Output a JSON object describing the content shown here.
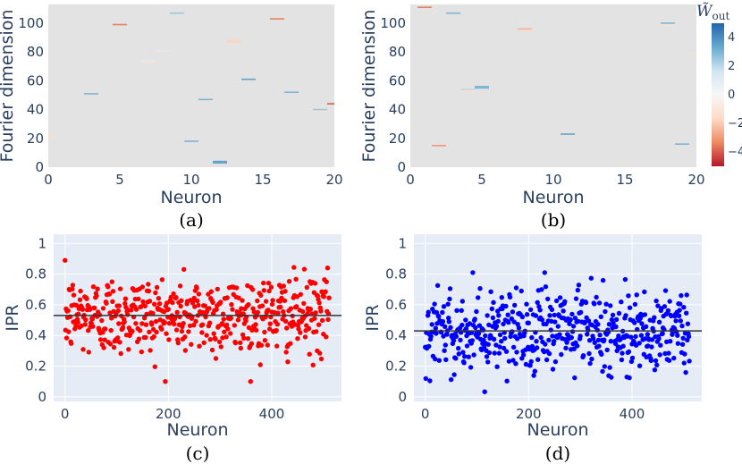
{
  "colorbar": {
    "title": "W̃",
    "subscript": "out",
    "ticks": [
      4,
      2,
      0,
      -2,
      -4
    ],
    "range": [
      -5,
      5
    ],
    "colors": [
      "#b2182b",
      "#ef8a62",
      "#fddbc7",
      "#f7f7f7",
      "#d1e5f0",
      "#67a9cf",
      "#2166ac"
    ]
  },
  "chart_data": [
    {
      "panel": "a",
      "type": "heatmap",
      "caption": "(a)",
      "xlabel": "Neuron",
      "ylabel": "Fourier dimension",
      "xlim": [
        0,
        20
      ],
      "ylim": [
        0,
        113
      ],
      "xticks": [
        0,
        5,
        10,
        15,
        20
      ],
      "yticks": [
        0,
        20,
        40,
        60,
        80,
        100
      ],
      "background": "#e3e3e3",
      "cells": [
        {
          "x": 0,
          "y": 21,
          "value": -1.5
        },
        {
          "x": 3,
          "y": 51,
          "value": 3
        },
        {
          "x": 5,
          "y": 99,
          "value": -3.5
        },
        {
          "x": 7,
          "y": 73,
          "value": -1.2
        },
        {
          "x": 7,
          "y": 74,
          "value": 1.2
        },
        {
          "x": 8,
          "y": 81,
          "value": -1.2
        },
        {
          "x": 8,
          "y": 82,
          "value": 1.5
        },
        {
          "x": 9,
          "y": 107,
          "value": 2.5
        },
        {
          "x": 10,
          "y": 18,
          "value": 3
        },
        {
          "x": 11,
          "y": 47,
          "value": 3
        },
        {
          "x": 12,
          "y": 3,
          "value": 3.5
        },
        {
          "x": 12,
          "y": 4,
          "value": 3.5
        },
        {
          "x": 13,
          "y": 87,
          "value": -1.8
        },
        {
          "x": 13,
          "y": 88,
          "value": -1.8
        },
        {
          "x": 14,
          "y": 61,
          "value": 3.5
        },
        {
          "x": 16,
          "y": 103,
          "value": -3.5
        },
        {
          "x": 17,
          "y": 52,
          "value": 3
        },
        {
          "x": 19,
          "y": 39,
          "value": -1.2
        },
        {
          "x": 19,
          "y": 40,
          "value": 2.5
        },
        {
          "x": 20,
          "y": 44,
          "value": -4
        }
      ]
    },
    {
      "panel": "b",
      "type": "heatmap",
      "caption": "(b)",
      "xlabel": "Neuron",
      "ylabel": "Fourier dimension",
      "xlim": [
        0,
        20
      ],
      "ylim": [
        0,
        113
      ],
      "xticks": [
        0,
        5,
        10,
        15,
        20
      ],
      "yticks": [
        0,
        20,
        40,
        60,
        80,
        100
      ],
      "background": "#e3e3e3",
      "cells": [
        {
          "x": 1,
          "y": 111,
          "value": -3.5
        },
        {
          "x": 2,
          "y": 15,
          "value": -3
        },
        {
          "x": 3,
          "y": 107,
          "value": 3
        },
        {
          "x": 4,
          "y": 53,
          "value": -1.5
        },
        {
          "x": 4,
          "y": 54,
          "value": 2
        },
        {
          "x": 5,
          "y": 55,
          "value": 3
        },
        {
          "x": 5,
          "y": 56,
          "value": 3
        },
        {
          "x": 8,
          "y": 95,
          "value": -1.5
        },
        {
          "x": 8,
          "y": 96,
          "value": -2.5
        },
        {
          "x": 11,
          "y": 23,
          "value": 3.5
        },
        {
          "x": 18,
          "y": 99,
          "value": -1.2
        },
        {
          "x": 18,
          "y": 100,
          "value": 3
        },
        {
          "x": 19,
          "y": 16,
          "value": 3
        },
        {
          "x": 20,
          "y": 79,
          "value": -1.5
        }
      ]
    },
    {
      "panel": "c",
      "type": "scatter",
      "caption": "(c)",
      "xlabel": "Neuron",
      "ylabel": "IPR",
      "xlim": [
        -22,
        535
      ],
      "ylim": [
        -0.03,
        1.06
      ],
      "xticks": [
        0,
        200,
        400
      ],
      "yticks": [
        0,
        0.2,
        0.4,
        0.6,
        0.8,
        1
      ],
      "color": "#ff0000",
      "mean": 0.53,
      "n_points": 512,
      "distribution": {
        "mean": 0.53,
        "std": 0.13,
        "min": 0.1,
        "max": 0.89
      }
    },
    {
      "panel": "d",
      "type": "scatter",
      "caption": "(d)",
      "xlabel": "Neuron",
      "ylabel": "IPR",
      "xlim": [
        -22,
        535
      ],
      "ylim": [
        -0.03,
        1.06
      ],
      "xticks": [
        0,
        200,
        400
      ],
      "yticks": [
        0,
        0.2,
        0.4,
        0.6,
        0.8,
        1
      ],
      "color": "#0000ff",
      "mean": 0.43,
      "n_points": 512,
      "distribution": {
        "mean": 0.43,
        "std": 0.14,
        "min": 0.01,
        "max": 0.81
      }
    }
  ]
}
